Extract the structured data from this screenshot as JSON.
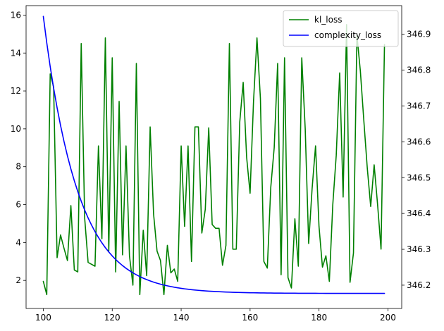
{
  "chart_data": {
    "type": "line",
    "title": "",
    "xlabel": "",
    "ylabel": "",
    "y2label": "",
    "grid": false,
    "legend_position": "upper-right",
    "xlim": [
      95,
      204
    ],
    "ylim": [
      0.52,
      16.5
    ],
    "y2lim": [
      346.135,
      346.98
    ],
    "x_ticks": [
      100,
      120,
      140,
      160,
      180,
      200
    ],
    "y_ticks": [
      2,
      4,
      6,
      8,
      10,
      12,
      14,
      16
    ],
    "y2_ticks": [
      346.2,
      346.3,
      346.4,
      346.5,
      346.6,
      346.7,
      346.8,
      346.9
    ],
    "x_start": 100,
    "series": [
      {
        "name": "kl_loss",
        "axis": "left",
        "color": "#008000",
        "values": [
          1.95,
          1.25,
          12.9,
          12.2,
          3.2,
          4.4,
          3.7,
          3.05,
          5.95,
          2.55,
          2.45,
          14.5,
          5.3,
          2.95,
          2.85,
          2.75,
          9.1,
          4.2,
          14.8,
          3.55,
          13.75,
          2.45,
          11.45,
          3.35,
          9.1,
          3.3,
          1.75,
          13.45,
          1.25,
          4.65,
          2.25,
          10.1,
          5.5,
          3.55,
          3.05,
          1.25,
          3.85,
          2.4,
          2.6,
          1.95,
          9.1,
          4.85,
          9.1,
          3.0,
          10.1,
          10.1,
          4.5,
          5.75,
          10.05,
          4.95,
          4.75,
          4.75,
          2.8,
          3.85,
          14.5,
          3.65,
          3.65,
          10.35,
          12.45,
          8.5,
          6.6,
          11.45,
          14.8,
          11.6,
          3.0,
          2.65,
          6.9,
          9.0,
          13.45,
          2.3,
          13.75,
          2.15,
          1.6,
          5.25,
          2.75,
          13.75,
          10.0,
          3.95,
          6.85,
          9.1,
          4.85,
          2.7,
          3.3,
          1.95,
          6.0,
          8.6,
          12.95,
          6.4,
          15.5,
          1.9,
          3.45,
          14.95,
          13.05,
          10.45,
          7.95,
          5.9,
          8.1,
          6.0,
          3.65,
          14.45
        ]
      },
      {
        "name": "complexity_loss",
        "axis": "right",
        "color": "#0000ff",
        "function": "exponential-decay",
        "start": 346.95,
        "asymptote": 346.177,
        "decay_rate": 0.1,
        "count": 100
      }
    ]
  }
}
